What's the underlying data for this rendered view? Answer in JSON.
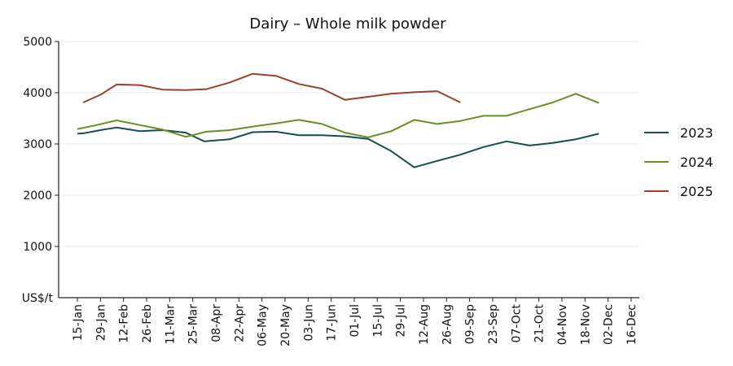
{
  "chart_data": {
    "type": "line",
    "title": "Dairy – Whole milk powder",
    "ylabel": "US$/t",
    "xlabel": "",
    "ylim": [
      0,
      5000
    ],
    "yticks": [
      "1000",
      "2000",
      "3000",
      "4000",
      "5000"
    ],
    "categories": [
      "15-Jan",
      "29-Jan",
      "12-Feb",
      "26-Feb",
      "11-Mar",
      "25-Mar",
      "08-Apr",
      "22-Apr",
      "06-May",
      "20-May",
      "03-Jun",
      "17-Jun",
      "01-Jul",
      "15-Jul",
      "29-Jul",
      "12-Aug",
      "26-Aug",
      "09-Sep",
      "23-Sep",
      "07-Oct",
      "21-Oct",
      "04-Nov",
      "18-Nov",
      "02-Dec",
      "16-Dec"
    ],
    "grid": "horizontal",
    "legend_position": "right",
    "series": [
      {
        "name": "2023",
        "color": "#164e50",
        "points": [
          [
            0.0,
            3200
          ],
          [
            0.28,
            3210
          ],
          [
            1.0,
            3270
          ],
          [
            1.7,
            3320
          ],
          [
            2.7,
            3250
          ],
          [
            3.7,
            3270
          ],
          [
            4.7,
            3220
          ],
          [
            5.5,
            3050
          ],
          [
            6.6,
            3090
          ],
          [
            7.6,
            3230
          ],
          [
            8.6,
            3240
          ],
          [
            9.6,
            3170
          ],
          [
            10.6,
            3170
          ],
          [
            11.6,
            3150
          ],
          [
            12.6,
            3100
          ],
          [
            13.6,
            2860
          ],
          [
            14.6,
            2545
          ],
          [
            15.6,
            2670
          ],
          [
            16.6,
            2790
          ],
          [
            17.6,
            2940
          ],
          [
            18.6,
            3050
          ],
          [
            19.6,
            2970
          ],
          [
            20.6,
            3020
          ],
          [
            21.6,
            3090
          ],
          [
            22.6,
            3200
          ]
        ]
      },
      {
        "name": "2024",
        "color": "#6a8e23",
        "points": [
          [
            0.0,
            3290
          ],
          [
            0.75,
            3360
          ],
          [
            1.7,
            3460
          ],
          [
            2.7,
            3370
          ],
          [
            3.7,
            3280
          ],
          [
            4.7,
            3140
          ],
          [
            5.6,
            3240
          ],
          [
            6.6,
            3270
          ],
          [
            7.6,
            3340
          ],
          [
            8.6,
            3400
          ],
          [
            9.6,
            3470
          ],
          [
            10.6,
            3390
          ],
          [
            11.6,
            3220
          ],
          [
            12.6,
            3130
          ],
          [
            13.6,
            3250
          ],
          [
            14.6,
            3470
          ],
          [
            15.6,
            3390
          ],
          [
            16.6,
            3450
          ],
          [
            17.6,
            3550
          ],
          [
            18.6,
            3550
          ],
          [
            19.6,
            3680
          ],
          [
            20.6,
            3810
          ],
          [
            21.6,
            3980
          ],
          [
            22.6,
            3800
          ]
        ]
      },
      {
        "name": "2025",
        "color": "#9b4030",
        "points": [
          [
            0.25,
            3810
          ],
          [
            1.0,
            3960
          ],
          [
            1.7,
            4160
          ],
          [
            2.7,
            4150
          ],
          [
            3.7,
            4060
          ],
          [
            4.7,
            4050
          ],
          [
            5.6,
            4070
          ],
          [
            6.6,
            4200
          ],
          [
            7.6,
            4370
          ],
          [
            8.6,
            4330
          ],
          [
            9.6,
            4170
          ],
          [
            10.6,
            4080
          ],
          [
            11.6,
            3860
          ],
          [
            12.6,
            3920
          ],
          [
            13.6,
            3980
          ],
          [
            14.6,
            4010
          ],
          [
            15.6,
            4030
          ],
          [
            16.6,
            3810
          ]
        ]
      }
    ]
  }
}
